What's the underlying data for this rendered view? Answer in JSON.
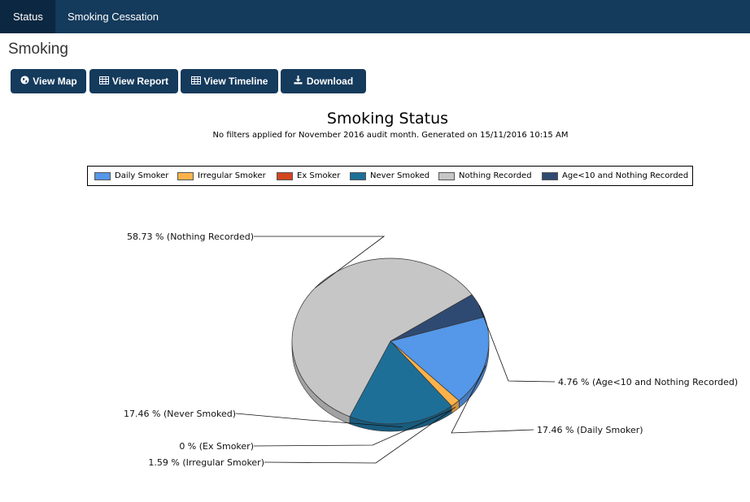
{
  "nav": {
    "tabs": [
      {
        "label": "Status"
      },
      {
        "label": "Smoking Cessation"
      }
    ]
  },
  "page_title": "Smoking",
  "toolbar": {
    "buttons": [
      {
        "label": "View Map",
        "icon": "globe-icon"
      },
      {
        "label": "View Report",
        "icon": "table-icon"
      },
      {
        "label": "View Timeline",
        "icon": "table-icon"
      },
      {
        "label": "Download",
        "icon": "download-icon"
      }
    ]
  },
  "chart_data": {
    "type": "pie",
    "title": "Smoking Status",
    "subtitle": "No filters applied for November 2016 audit month. Generated on 15/11/2016 10:15 AM",
    "legend_position": "top",
    "slices": [
      {
        "name": "Daily Smoker",
        "value": 17.46,
        "label": "17.46 % (Daily Smoker)",
        "color": "#5597e8"
      },
      {
        "name": "Irregular Smoker",
        "value": 1.59,
        "label": "1.59 % (Irregular Smoker)",
        "color": "#fbb24a"
      },
      {
        "name": "Ex Smoker",
        "value": 0,
        "label": "0 % (Ex Smoker)",
        "color": "#d2461e"
      },
      {
        "name": "Never Smoked",
        "value": 17.46,
        "label": "17.46 % (Never Smoked)",
        "color": "#1e6f98"
      },
      {
        "name": "Nothing Recorded",
        "value": 58.73,
        "label": "58.73 % (Nothing Recorded)",
        "color": "#c6c6c6"
      },
      {
        "name": "Age<10 and Nothing Recorded",
        "value": 4.76,
        "label": "4.76 % (Age<10 and Nothing Recorded)",
        "color": "#2f4a72"
      }
    ]
  }
}
